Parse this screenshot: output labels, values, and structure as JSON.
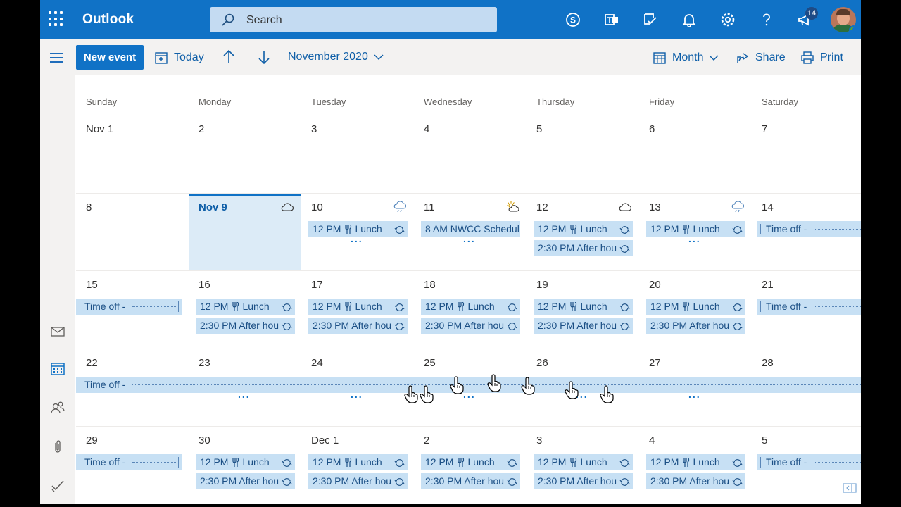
{
  "app": {
    "title": "Outlook"
  },
  "search": {
    "placeholder": "Search"
  },
  "header": {
    "notifications_count": "14"
  },
  "toolbar": {
    "new_event": "New event",
    "today": "Today",
    "current_period": "November 2020",
    "view": "Month",
    "share": "Share",
    "print": "Print"
  },
  "calendar": {
    "weekdays": [
      "Sunday",
      "Monday",
      "Tuesday",
      "Wednesday",
      "Thursday",
      "Friday",
      "Saturday"
    ],
    "weeks": [
      [
        "Nov 1",
        "2",
        "3",
        "4",
        "5",
        "6",
        "7"
      ],
      [
        "8",
        "Nov 9",
        "10",
        "11",
        "12",
        "13",
        "14"
      ],
      [
        "15",
        "16",
        "17",
        "18",
        "19",
        "20",
        "21"
      ],
      [
        "22",
        "23",
        "24",
        "25",
        "26",
        "27",
        "28"
      ],
      [
        "29",
        "30",
        "Dec 1",
        "2",
        "3",
        "4",
        "5"
      ]
    ],
    "more_indicator": "...",
    "events": {
      "lunch_time": "12 PM",
      "lunch_title": "Lunch",
      "after_hours": "2:30 PM After hou",
      "nwcc": "8 AM NWCC Schedul",
      "time_off": "Time off -"
    }
  },
  "colors": {
    "brand_blue": "#1072c6",
    "event_fill": "#c7e0f4",
    "today_fill": "#dcebf7"
  }
}
